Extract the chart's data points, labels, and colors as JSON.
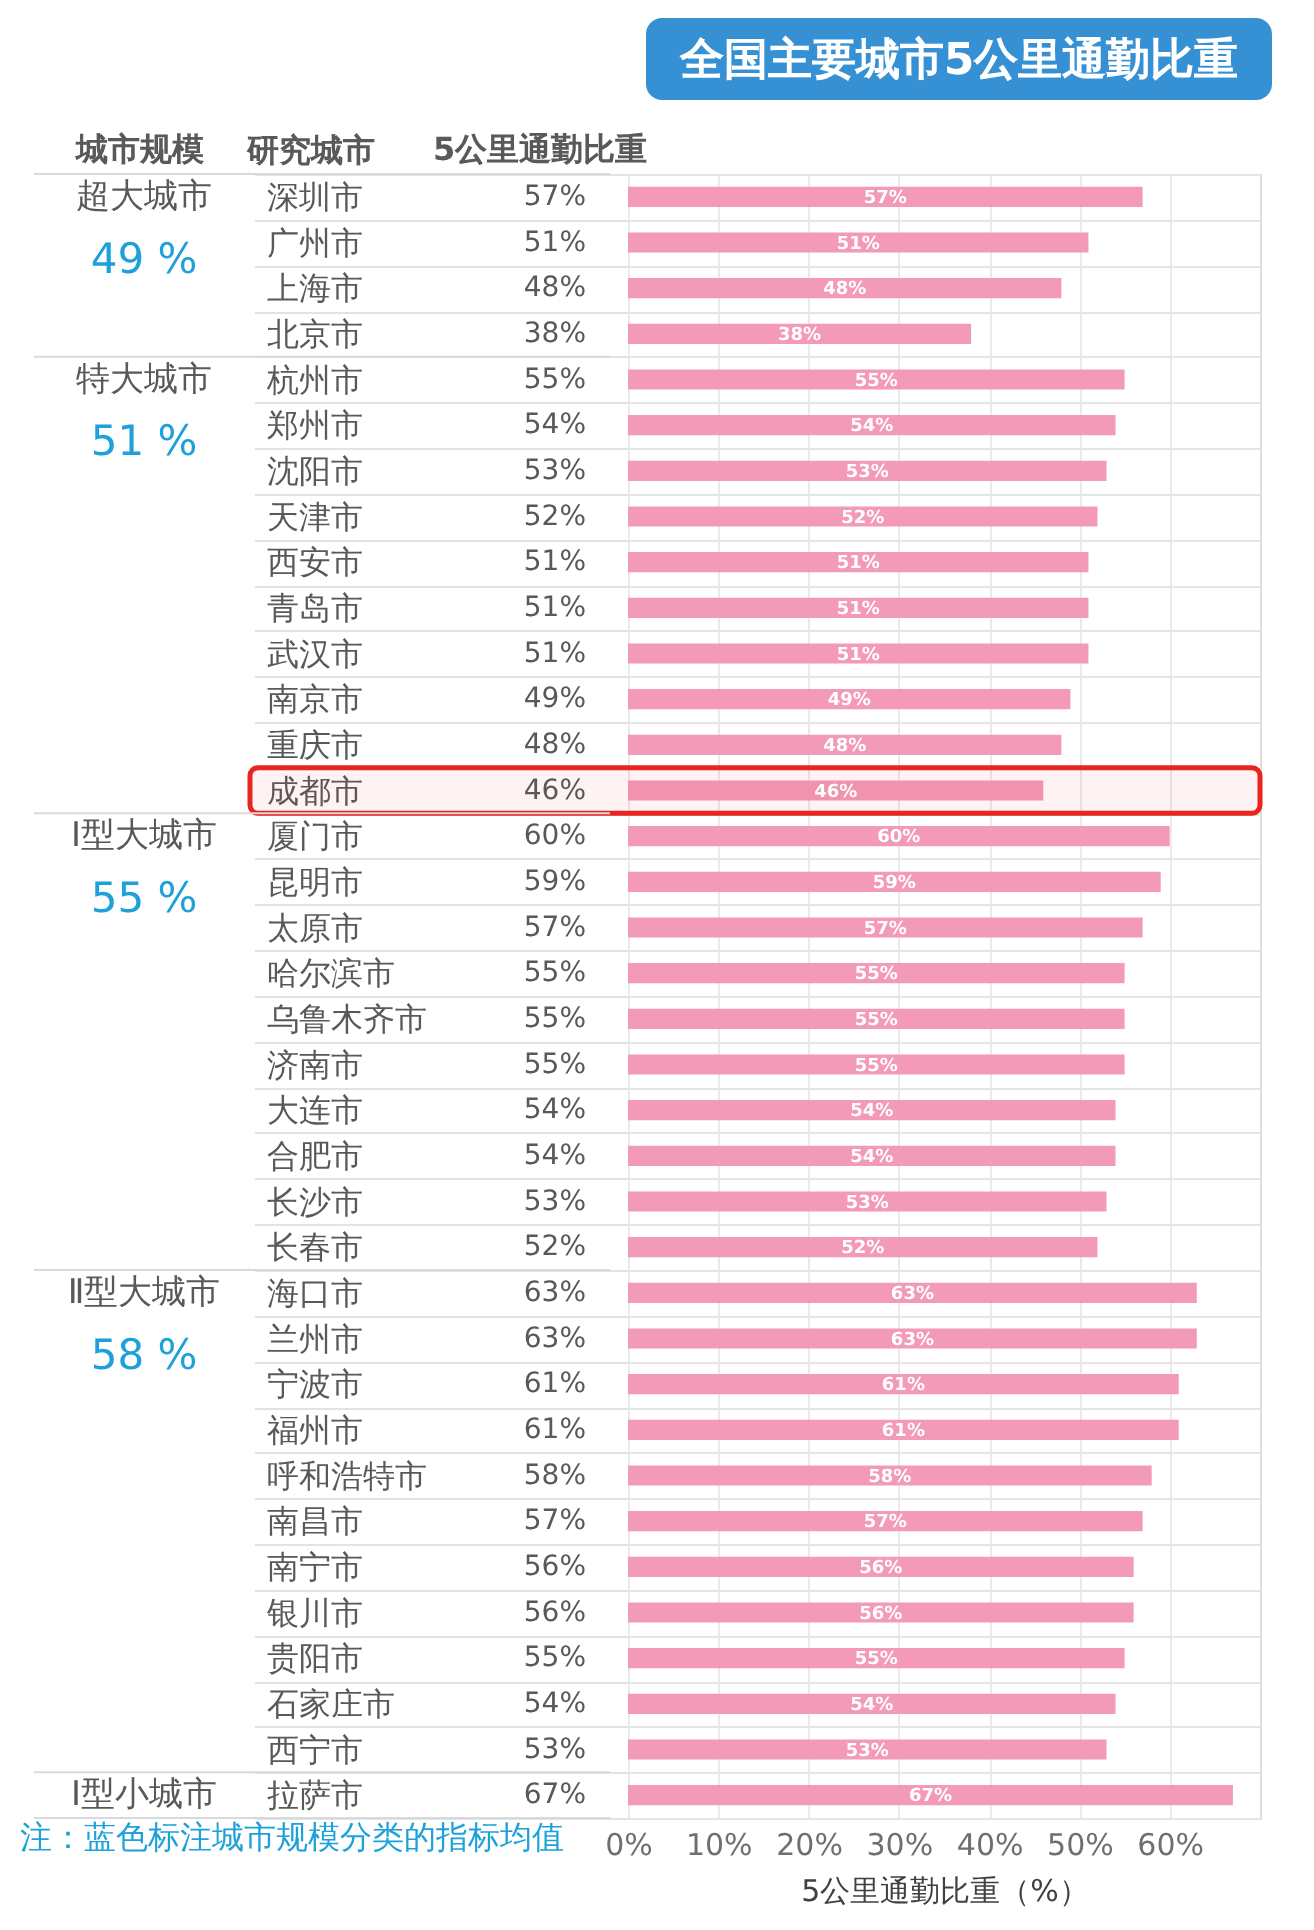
{
  "chart_data": {
    "type": "bar",
    "orientation": "horizontal",
    "title": "全国主要城市5公里通勤比重",
    "xlabel": "5公里通勤比重（%）",
    "ylabel": "研究城市",
    "categories": [
      "深圳市",
      "广州市",
      "上海市",
      "北京市",
      "杭州市",
      "郑州市",
      "沈阳市",
      "天津市",
      "西安市",
      "青岛市",
      "武汉市",
      "南京市",
      "重庆市",
      "成都市",
      "厦门市",
      "昆明市",
      "太原市",
      "哈尔滨市",
      "乌鲁木齐市",
      "济南市",
      "大连市",
      "合肥市",
      "长沙市",
      "长春市",
      "海口市",
      "兰州市",
      "宁波市",
      "福州市",
      "呼和浩特市",
      "南昌市",
      "南宁市",
      "银川市",
      "贵阳市",
      "石家庄市",
      "西宁市",
      "拉萨市"
    ],
    "values": [
      57,
      51,
      48,
      38,
      55,
      54,
      53,
      52,
      51,
      51,
      51,
      49,
      48,
      46,
      60,
      59,
      57,
      55,
      55,
      55,
      54,
      54,
      53,
      52,
      63,
      63,
      61,
      61,
      58,
      57,
      56,
      56,
      55,
      54,
      53,
      67
    ],
    "value_labels": [
      "57%",
      "51%",
      "48%",
      "38%",
      "55%",
      "54%",
      "53%",
      "52%",
      "51%",
      "51%",
      "51%",
      "49%",
      "48%",
      "46%",
      "60%",
      "59%",
      "57%",
      "55%",
      "55%",
      "55%",
      "54%",
      "54%",
      "53%",
      "52%",
      "63%",
      "63%",
      "61%",
      "61%",
      "58%",
      "57%",
      "56%",
      "56%",
      "55%",
      "54%",
      "53%",
      "67%"
    ],
    "color": "#f29ab8",
    "xlim": [
      0,
      70
    ],
    "xticks": [
      {
        "value": 0,
        "label": "0%"
      },
      {
        "value": 10,
        "label": "10%"
      },
      {
        "value": 20,
        "label": "20%"
      },
      {
        "value": 30,
        "label": "30%"
      },
      {
        "value": 40,
        "label": "40%"
      },
      {
        "value": 50,
        "label": "50%"
      },
      {
        "value": 60,
        "label": "60%"
      }
    ],
    "grid": true,
    "bands": [
      {
        "axis": "y",
        "from": "成都市",
        "to": "成都市",
        "color": "#e8251f"
      }
    ],
    "annotations": [
      "城市规模",
      "5公里通勤比重",
      "超大城市",
      "49 %",
      "特大城市",
      "51 %",
      "Ⅰ型大城市",
      "55 %",
      "Ⅱ型大城市",
      "58 %",
      "Ⅰ型小城市",
      "注：蓝色标注城市规模分类的指标均值"
    ]
  }
}
